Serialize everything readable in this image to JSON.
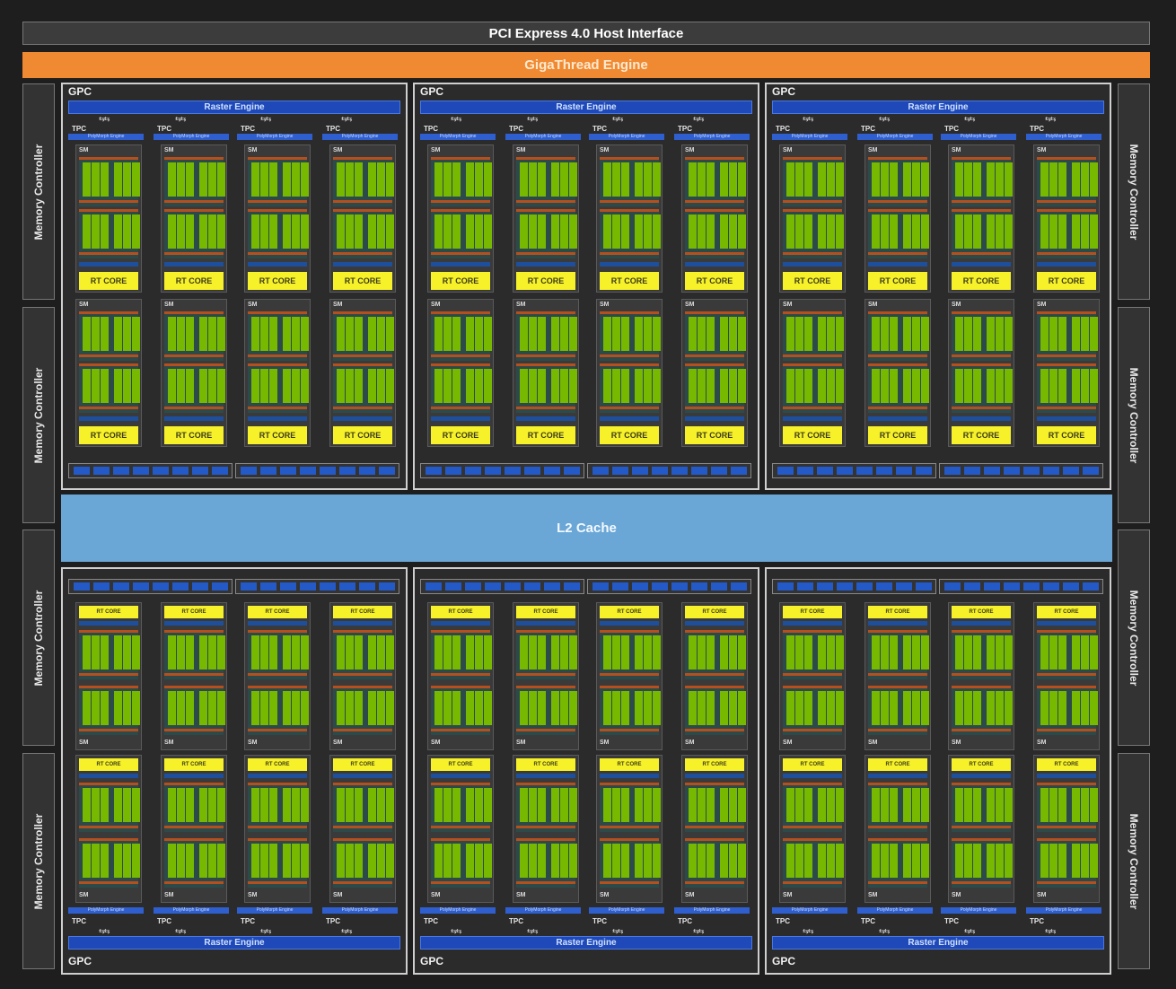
{
  "pcie_label": "PCI Express 4.0 Host Interface",
  "giga_label": "GigaThread Engine",
  "l2_label": "L2 Cache",
  "memory_controller_label": "Memory Controller",
  "gpc_label": "GPC",
  "raster_label": "Raster Engine",
  "tpc_label": "TPC",
  "polymorph_label": "PolyMorph Engine",
  "sm_label": "SM",
  "rt_core_label": "RT CORE",
  "colors": {
    "background": "#1e1e1e",
    "gigathread": "#f08a32",
    "l2": "#6aa7d6",
    "raster": "#1f49b8",
    "cuda_cores": "#76b900",
    "rt_core": "#f7f129"
  }
}
